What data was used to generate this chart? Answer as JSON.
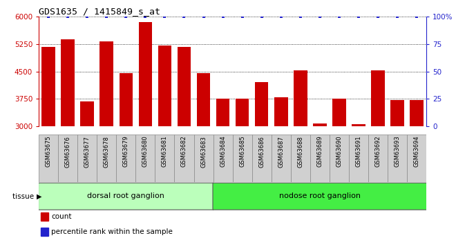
{
  "title": "GDS1635 / 1415849_s_at",
  "samples": [
    "GSM63675",
    "GSM63676",
    "GSM63677",
    "GSM63678",
    "GSM63679",
    "GSM63680",
    "GSM63681",
    "GSM63682",
    "GSM63683",
    "GSM63684",
    "GSM63685",
    "GSM63686",
    "GSM63687",
    "GSM63688",
    "GSM63689",
    "GSM63690",
    "GSM63691",
    "GSM63692",
    "GSM63693",
    "GSM63694"
  ],
  "counts": [
    5180,
    5380,
    3680,
    5320,
    4460,
    5850,
    5200,
    5180,
    4460,
    3750,
    3750,
    4200,
    3800,
    4530,
    3080,
    3750,
    3060,
    4530,
    3720,
    3720
  ],
  "percentiles": [
    100,
    100,
    100,
    100,
    100,
    100,
    100,
    100,
    100,
    100,
    100,
    100,
    100,
    100,
    100,
    100,
    100,
    100,
    100,
    100
  ],
  "bar_color": "#cc0000",
  "percentile_color": "#2222cc",
  "ylim_left": [
    3000,
    6000
  ],
  "ylim_right": [
    0,
    100
  ],
  "yticks_left": [
    3000,
    3750,
    4500,
    5250,
    6000
  ],
  "yticks_right": [
    0,
    25,
    50,
    75,
    100
  ],
  "groups": [
    {
      "label": "dorsal root ganglion",
      "start": 0,
      "end": 9,
      "color": "#bbffbb"
    },
    {
      "label": "nodose root ganglion",
      "start": 9,
      "end": 20,
      "color": "#44ee44"
    }
  ],
  "tissue_label": "tissue",
  "legend_count_label": "count",
  "legend_percentile_label": "percentile rank within the sample",
  "left_axis_color": "#cc0000",
  "right_axis_color": "#2222cc",
  "tick_bg_color": "#d0d0d0",
  "tick_border_color": "#888888"
}
